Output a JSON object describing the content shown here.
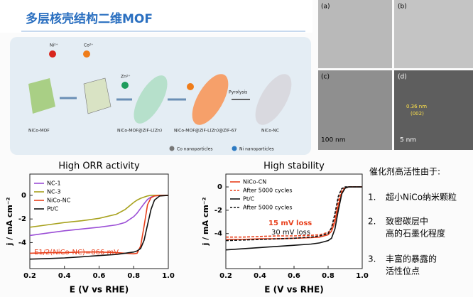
{
  "title": "多层核壳结构二维MOF",
  "scheme": {
    "ions": [
      "Ni²⁺",
      "Co²⁺",
      "Zn²⁺"
    ],
    "step": "Pyrolysis",
    "stages": [
      "NiCo-MOF",
      "NiCo-MOF@ZIF-L(Zn)",
      "NiCo-MOF@ZIF-L(Zn)@ZIF-67",
      "NiCo-NC"
    ],
    "legend": [
      "Co nanoparticles",
      "Ni nanoparticles"
    ]
  },
  "tem": {
    "panels": [
      "(a)",
      "(b)",
      "(c)",
      "(d)"
    ],
    "scale_bars": [
      "100 nm",
      "5 nm"
    ],
    "lattice": [
      "0.36 nm",
      "(002)"
    ]
  },
  "notes": {
    "heading": "催化剂高活性由于:",
    "items": [
      {
        "num": "1.",
        "lines": [
          "超小NiCo纳米颗粒"
        ]
      },
      {
        "num": "2.",
        "lines": [
          "致密碳层中",
          "高的石墨化程度"
        ]
      },
      {
        "num": "3.",
        "lines": [
          "丰富的暴露的",
          "活性位点"
        ]
      }
    ]
  },
  "chart_data": [
    {
      "type": "line",
      "title": "High ORR activity",
      "x_label": "E (V vs RHE)",
      "y_label": "j / mA cm⁻²",
      "x": [
        0.2,
        0.3,
        0.4,
        0.5,
        0.6,
        0.7,
        0.75,
        0.8,
        0.82,
        0.84,
        0.86,
        0.88,
        0.9,
        0.92,
        0.95,
        1.0
      ],
      "xlim": [
        0.2,
        1.0
      ],
      "ylim": [
        -6.2,
        1.8
      ],
      "xticks": [
        0.2,
        0.4,
        0.6,
        0.8,
        {
          "value": 1,
          "label": "1.0"
        }
      ],
      "yticks": [
        0,
        -2,
        -4
      ],
      "series": [
        {
          "name": "NC-1",
          "color": "#9b4fd6",
          "dash": false,
          "values": [
            -3.4,
            -3.2,
            -3.0,
            -2.85,
            -2.7,
            -2.5,
            -2.3,
            -1.8,
            -1.5,
            -1.1,
            -0.7,
            -0.35,
            -0.15,
            -0.05,
            0,
            0
          ]
        },
        {
          "name": "NC-3",
          "color": "#a8a21e",
          "dash": false,
          "values": [
            -2.7,
            -2.5,
            -2.3,
            -2.15,
            -1.95,
            -1.6,
            -1.2,
            -0.6,
            -0.4,
            -0.25,
            -0.15,
            -0.05,
            0,
            0,
            0,
            0
          ]
        },
        {
          "name": "NiCo-NC",
          "color": "#e8401c",
          "dash": false,
          "values": [
            -4.9,
            -4.85,
            -4.85,
            -4.8,
            -4.8,
            -4.85,
            -4.9,
            -4.95,
            -4.9,
            -4.3,
            -2.6,
            -0.8,
            -0.2,
            -0.05,
            0,
            0
          ]
        },
        {
          "name": "Pt/C",
          "color": "#111111",
          "dash": false,
          "values": [
            -5.4,
            -5.35,
            -5.3,
            -5.2,
            -5.1,
            -5.0,
            -4.9,
            -4.8,
            -4.7,
            -4.5,
            -3.8,
            -2.5,
            -1.2,
            -0.4,
            -0.05,
            0
          ]
        }
      ],
      "annotations": [
        "E1/2(NiCo-NC)=866 mV"
      ],
      "annotation_colors": [
        "#e8401c"
      ]
    },
    {
      "type": "line",
      "title": "High stability",
      "x_label": "E (V vs RHE)",
      "y_label": "j / mA cm⁻²",
      "x": [
        0.2,
        0.3,
        0.4,
        0.5,
        0.6,
        0.7,
        0.75,
        0.8,
        0.82,
        0.84,
        0.86,
        0.88,
        0.9,
        0.92,
        0.95,
        1.0
      ],
      "xlim": [
        0.2,
        1.0
      ],
      "ylim": [
        -7,
        1.1
      ],
      "xticks": [
        0.2,
        0.4,
        0.6,
        0.8,
        {
          "value": 1,
          "label": "1.0"
        }
      ],
      "yticks": [
        0,
        -2,
        -4
      ],
      "series": [
        {
          "name": "NiCo-CN",
          "color": "#e8401c",
          "dash": false,
          "values": [
            -4.5,
            -4.5,
            -4.45,
            -4.45,
            -4.4,
            -4.35,
            -4.3,
            -4.1,
            -3.8,
            -3.0,
            -1.6,
            -0.5,
            -0.1,
            0,
            0,
            0
          ]
        },
        {
          "name": "After 5000 cycles",
          "color": "#e8401c",
          "dash": true,
          "values": [
            -4.3,
            -4.3,
            -4.25,
            -4.2,
            -4.2,
            -4.15,
            -4.1,
            -3.9,
            -3.6,
            -2.6,
            -1.2,
            -0.3,
            -0.05,
            0,
            0,
            0
          ]
        },
        {
          "name": "Pt/C",
          "color": "#111111",
          "dash": false,
          "values": [
            -5.4,
            -5.3,
            -5.2,
            -5.1,
            -5.0,
            -4.9,
            -4.8,
            -4.6,
            -4.4,
            -3.6,
            -2.0,
            -0.6,
            -0.1,
            0,
            0,
            0
          ]
        },
        {
          "name": "After 5000 cycles",
          "color": "#111111",
          "dash": true,
          "values": [
            -4.6,
            -4.55,
            -4.5,
            -4.45,
            -4.4,
            -4.3,
            -4.2,
            -4.0,
            -3.5,
            -2.3,
            -0.8,
            -0.15,
            0,
            0,
            0,
            0
          ]
        }
      ],
      "annotations": [
        "15 mV loss",
        "30 mV loss"
      ],
      "annotation_colors": [
        "#e8401c",
        "#111111"
      ]
    }
  ]
}
